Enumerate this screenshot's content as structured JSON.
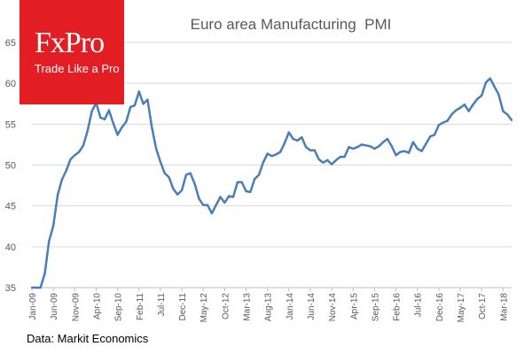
{
  "brand": {
    "name": "FxPro",
    "tagline": "Trade Like a Pro",
    "color": "#e21d24"
  },
  "source": "Data: Markit Economics",
  "chart_data": {
    "type": "line",
    "title": "Euro area Manufacturing  PMI",
    "xlabel": "",
    "ylabel": "",
    "ylim": [
      35,
      65
    ],
    "yticks": [
      35,
      40,
      45,
      50,
      55,
      60,
      65
    ],
    "grid": "horizontal",
    "line_color": "#4a7ebb",
    "x_start": "2009-01",
    "frequency": "monthly",
    "tick_labels": [
      "Jan-09",
      "Jun-09",
      "Nov-09",
      "Apr-10",
      "Sep-10",
      "Feb-11",
      "Jul-11",
      "Dec-11",
      "May-12",
      "Oct-12",
      "Mar-13",
      "Aug-13",
      "Jan-14",
      "Jun-14",
      "Nov-14",
      "Apr-15",
      "Sep-15",
      "Feb-16",
      "Jul-16",
      "Dec-16",
      "May-17",
      "Oct-17",
      "Mar-18"
    ],
    "series": [
      {
        "name": "Euro area Manufacturing PMI",
        "values": [
          34.4,
          33.5,
          33.9,
          36.7,
          40.7,
          42.6,
          46.3,
          48.2,
          49.3,
          50.7,
          51.2,
          51.6,
          52.4,
          54.2,
          56.6,
          57.6,
          55.8,
          55.6,
          56.7,
          55.1,
          53.7,
          54.6,
          55.3,
          57.1,
          57.3,
          59.0,
          57.5,
          58.0,
          54.6,
          52.0,
          50.4,
          49.0,
          48.5,
          47.1,
          46.4,
          46.9,
          48.8,
          49.0,
          47.7,
          45.9,
          45.1,
          45.1,
          44.1,
          45.1,
          46.1,
          45.4,
          46.2,
          46.1,
          47.9,
          47.9,
          46.8,
          46.7,
          48.3,
          48.8,
          50.3,
          51.4,
          51.1,
          51.3,
          51.6,
          52.7,
          54.0,
          53.2,
          53.0,
          53.4,
          52.2,
          51.8,
          51.8,
          50.7,
          50.3,
          50.6,
          50.1,
          50.6,
          51.0,
          51.0,
          52.2,
          52.0,
          52.2,
          52.5,
          52.4,
          52.3,
          52.0,
          52.3,
          52.8,
          53.2,
          52.3,
          51.2,
          51.6,
          51.7,
          51.5,
          52.8,
          52.0,
          51.7,
          52.6,
          53.5,
          53.7,
          54.9,
          55.2,
          55.4,
          56.2,
          56.7,
          57.0,
          57.4,
          56.6,
          57.4,
          58.1,
          58.5,
          60.1,
          60.6,
          59.6,
          58.6,
          56.6,
          56.2,
          55.5
        ]
      }
    ]
  }
}
